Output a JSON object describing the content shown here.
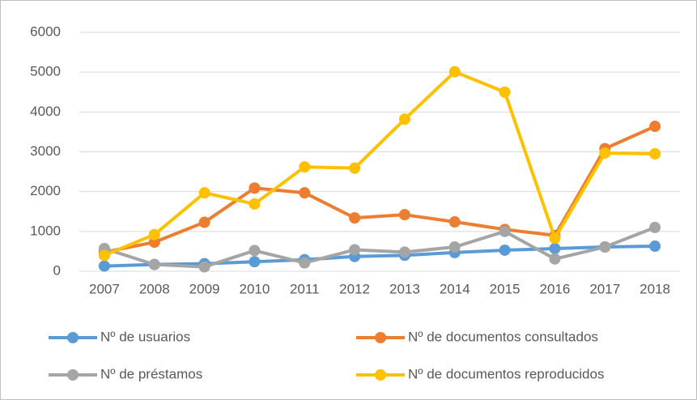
{
  "chart_data": {
    "type": "line",
    "categories": [
      "2007",
      "2008",
      "2009",
      "2010",
      "2011",
      "2012",
      "2013",
      "2014",
      "2015",
      "2016",
      "2017",
      "2018"
    ],
    "series": [
      {
        "name": "Nº de usuarios",
        "color": "#5b9bd5",
        "values": [
          130,
          170,
          190,
          240,
          290,
          370,
          400,
          470,
          530,
          570,
          610,
          630
        ]
      },
      {
        "name": "Nº de documentos consultados",
        "color": "#ed7d31",
        "values": [
          480,
          730,
          1230,
          2090,
          1970,
          1340,
          1420,
          1240,
          1050,
          900,
          3080,
          3640
        ]
      },
      {
        "name": "Nº de préstamos",
        "color": "#a5a5a5",
        "values": [
          570,
          170,
          110,
          520,
          210,
          540,
          480,
          610,
          1000,
          310,
          610,
          1100
        ]
      },
      {
        "name": "Nº de documentos reproducidos",
        "color": "#ffc000",
        "values": [
          400,
          920,
          1970,
          1690,
          2620,
          2590,
          3820,
          5010,
          4500,
          830,
          2970,
          2950
        ]
      }
    ],
    "ylim": [
      0,
      6000
    ],
    "yticks": [
      0,
      1000,
      2000,
      3000,
      4000,
      5000,
      6000
    ],
    "grid": true,
    "legend": "bottom"
  }
}
